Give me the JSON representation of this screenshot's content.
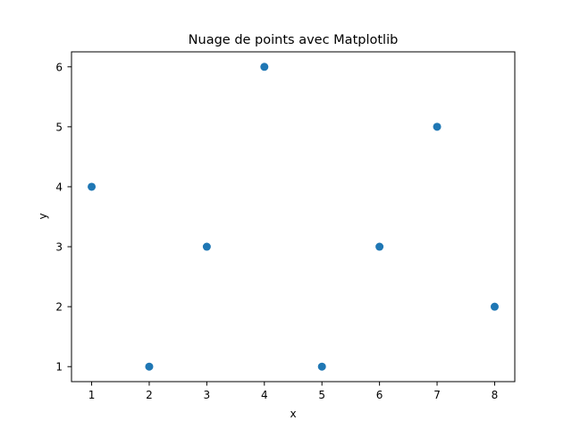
{
  "chart_data": {
    "type": "scatter",
    "title": "Nuage de points avec Matplotlib",
    "xlabel": "x",
    "ylabel": "y",
    "xlim": [
      0.65,
      8.35
    ],
    "ylim": [
      0.75,
      6.25
    ],
    "xticks": [
      1,
      2,
      3,
      4,
      5,
      6,
      7,
      8
    ],
    "yticks": [
      1,
      2,
      3,
      4,
      5,
      6
    ],
    "grid": false,
    "legend": "none",
    "series": [
      {
        "color": "#1f77b4",
        "points": [
          {
            "x": 1,
            "y": 4
          },
          {
            "x": 2,
            "y": 1
          },
          {
            "x": 3,
            "y": 3
          },
          {
            "x": 4,
            "y": 6
          },
          {
            "x": 5,
            "y": 1
          },
          {
            "x": 6,
            "y": 3
          },
          {
            "x": 7,
            "y": 5
          },
          {
            "x": 8,
            "y": 2
          }
        ]
      }
    ]
  }
}
